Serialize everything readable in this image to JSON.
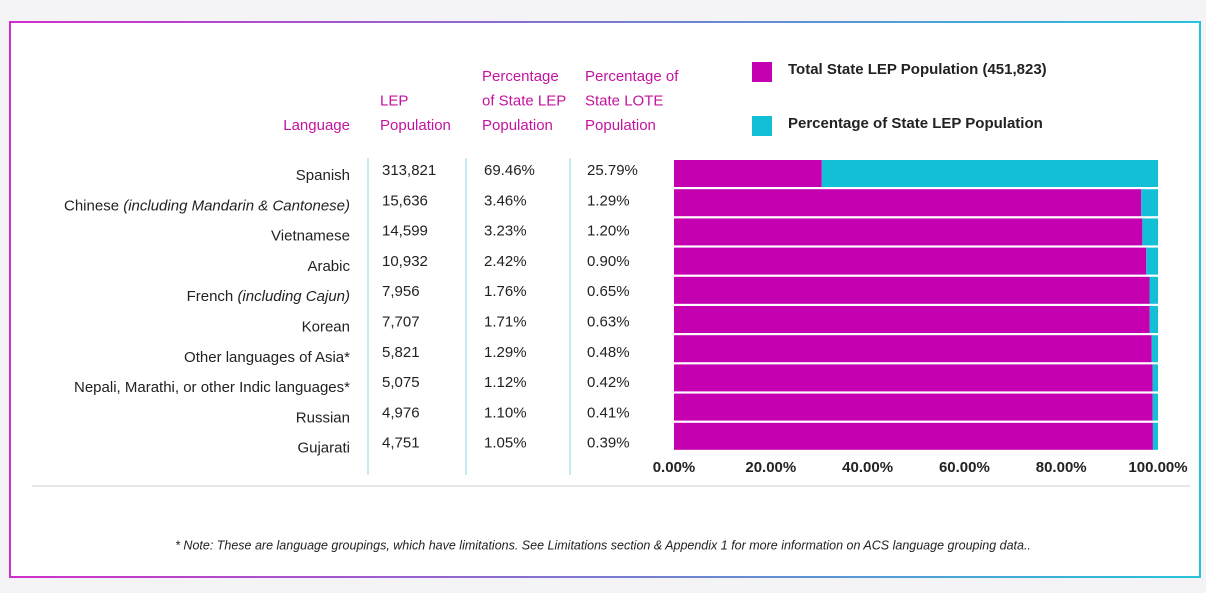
{
  "chart_data": {
    "type": "bar",
    "stacked": true,
    "orientation": "horizontal",
    "table_headers": [
      [
        "Language"
      ],
      [
        "LEP",
        "Population"
      ],
      [
        "Percentage",
        "of State LEP",
        "Population"
      ],
      [
        "Percentage of",
        "State LOTE",
        "Population"
      ]
    ],
    "categories": [
      "Spanish",
      "Chinese (including Mandarin & Cantonese)",
      "Vietnamese",
      "Arabic",
      "French (including Cajun)",
      "Korean",
      "Other languages of Asia*",
      "Nepali, Marathi, or other Indic languages*",
      "Russian",
      "Gujarati"
    ],
    "table": [
      [
        "313,821",
        "69.46%",
        "25.79%"
      ],
      [
        "15,636",
        "3.46%",
        "1.29%"
      ],
      [
        "14,599",
        "3.23%",
        "1.20%"
      ],
      [
        "10,932",
        "2.42%",
        "0.90%"
      ],
      [
        "7,956",
        "1.76%",
        "0.65%"
      ],
      [
        "7,707",
        "1.71%",
        "0.63%"
      ],
      [
        "5,821",
        "1.29%",
        "0.48%"
      ],
      [
        "5,075",
        "1.12%",
        "0.42%"
      ],
      [
        "4,976",
        "1.10%",
        "0.41%"
      ],
      [
        "4,751",
        "1.05%",
        "0.39%"
      ]
    ],
    "series": [
      {
        "name": "Total State LEP Population (451,823)",
        "color": "#c400b0",
        "values": [
          30.54,
          96.54,
          96.77,
          97.58,
          98.24,
          98.29,
          98.71,
          98.88,
          98.9,
          98.95
        ]
      },
      {
        "name": "Percentage of State LEP Population",
        "color": "#13bfd6",
        "values": [
          69.46,
          3.46,
          3.23,
          2.42,
          1.76,
          1.71,
          1.29,
          1.12,
          1.1,
          1.05
        ]
      }
    ],
    "xlim": [
      0,
      100
    ],
    "xticks": [
      {
        "value": 0,
        "label": "0.00%"
      },
      {
        "value": 20,
        "label": "20.00%"
      },
      {
        "value": 40,
        "label": "40.00%"
      },
      {
        "value": 60,
        "label": "60.00%"
      },
      {
        "value": 80,
        "label": "80.00%"
      },
      {
        "value": 100,
        "label": "100.00%"
      }
    ],
    "footnote": "* Note: These are language groupings, which have limitations. See Limitations section & Appendix 1 for more information on ACS language grouping data.."
  }
}
